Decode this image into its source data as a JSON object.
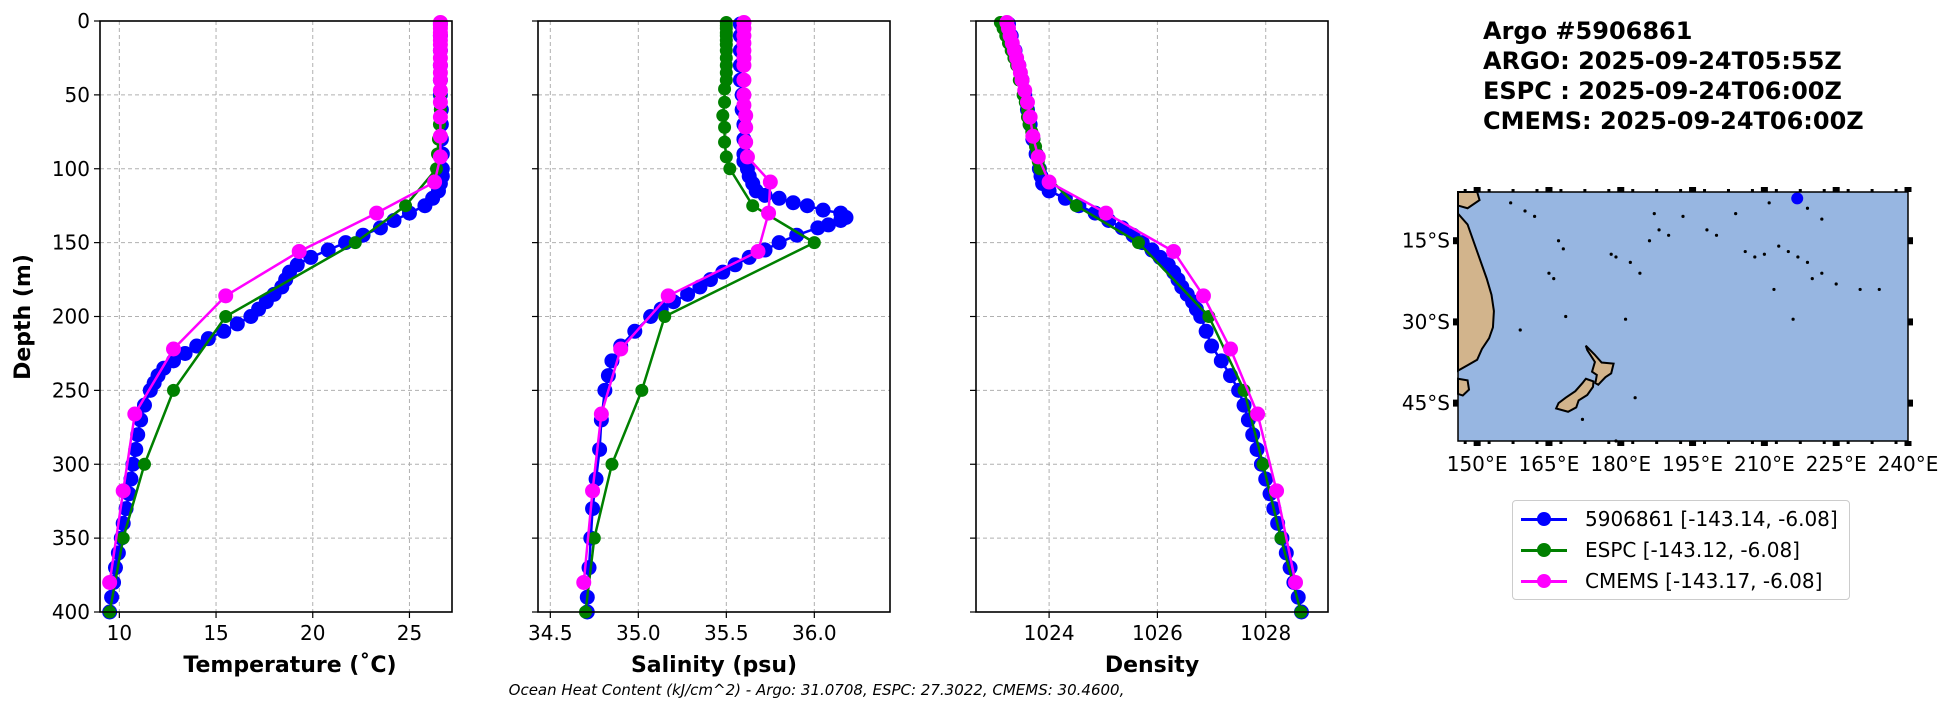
{
  "info": {
    "lines": [
      "Argo #5906861",
      "ARGO: 2025-09-24T05:55Z",
      "ESPC : 2025-09-24T06:00Z",
      "CMEMS: 2025-09-24T06:00Z"
    ]
  },
  "footnote": "Ocean Heat Content (kJ/cm^2) - Argo: 31.0708,  ESPC: 27.3022,  CMEMS: 30.4600,",
  "colors": {
    "argo": "#0000ff",
    "espc": "#008000",
    "cmems": "#ff00ff",
    "ocean": "#97b6e1",
    "land": "#d2b48c"
  },
  "legend": [
    {
      "label": "5906861 [-143.14, -6.08]",
      "series": "argo"
    },
    {
      "label": "ESPC [-143.12, -6.08]",
      "series": "espc"
    },
    {
      "label": "CMEMS [-143.17, -6.08]",
      "series": "cmems"
    }
  ],
  "chart_data": [
    {
      "type": "line",
      "title": "",
      "xlabel": "Temperature (˚C)",
      "ylabel": "Depth (m)",
      "xlim": [
        9.0,
        27.2
      ],
      "ylim": [
        400,
        0
      ],
      "xticks": [
        10,
        15,
        20,
        25
      ],
      "yticks": [
        0,
        50,
        100,
        150,
        200,
        250,
        300,
        350,
        400
      ],
      "grid": true,
      "series": [
        {
          "name": "5906861",
          "key": "argo",
          "depth": [
            2,
            10,
            20,
            30,
            40,
            50,
            60,
            70,
            80,
            90,
            100,
            105,
            110,
            115,
            120,
            125,
            130,
            135,
            140,
            145,
            150,
            155,
            160,
            165,
            170,
            175,
            180,
            185,
            190,
            195,
            200,
            205,
            210,
            215,
            220,
            225,
            230,
            235,
            240,
            245,
            250,
            260,
            270,
            280,
            290,
            300,
            310,
            320,
            330,
            340,
            350,
            360,
            370,
            380,
            390,
            400
          ],
          "values": [
            26.6,
            26.6,
            26.6,
            26.6,
            26.6,
            26.6,
            26.65,
            26.65,
            26.65,
            26.7,
            26.7,
            26.7,
            26.6,
            26.5,
            26.2,
            25.8,
            25.0,
            24.2,
            23.5,
            22.6,
            21.7,
            20.8,
            19.9,
            19.2,
            18.8,
            18.6,
            18.4,
            18.0,
            17.6,
            17.2,
            16.8,
            16.1,
            15.4,
            14.6,
            14.0,
            13.4,
            12.8,
            12.3,
            12.0,
            11.8,
            11.6,
            11.3,
            11.1,
            10.95,
            10.85,
            10.7,
            10.6,
            10.5,
            10.35,
            10.2,
            10.1,
            9.95,
            9.8,
            9.7,
            9.6,
            9.5
          ]
        },
        {
          "name": "ESPC",
          "key": "espc",
          "depth": [
            1,
            3,
            5,
            8,
            10,
            13,
            16,
            20,
            25,
            30,
            35,
            40,
            50,
            60,
            70,
            80,
            90,
            100,
            125,
            150,
            200,
            250,
            300,
            350,
            400
          ],
          "values": [
            26.6,
            26.6,
            26.6,
            26.6,
            26.6,
            26.6,
            26.6,
            26.6,
            26.6,
            26.6,
            26.6,
            26.6,
            26.6,
            26.6,
            26.55,
            26.5,
            26.45,
            26.4,
            24.8,
            22.2,
            15.5,
            12.8,
            11.3,
            10.2,
            9.5
          ]
        },
        {
          "name": "CMEMS",
          "key": "cmems",
          "depth": [
            1,
            3,
            5,
            8,
            10,
            13,
            16,
            20,
            25,
            30,
            35,
            40,
            47,
            55,
            65,
            78,
            92,
            109,
            130,
            156,
            186,
            222,
            266,
            318,
            380
          ],
          "values": [
            26.6,
            26.6,
            26.6,
            26.6,
            26.6,
            26.6,
            26.6,
            26.6,
            26.6,
            26.6,
            26.6,
            26.6,
            26.6,
            26.6,
            26.6,
            26.6,
            26.6,
            26.3,
            23.3,
            19.3,
            15.5,
            12.8,
            10.8,
            10.2,
            9.5
          ]
        }
      ]
    },
    {
      "type": "line",
      "title": "",
      "xlabel": "Salinity (psu)",
      "ylabel": "",
      "xlim": [
        34.43,
        36.43
      ],
      "ylim": [
        400,
        0
      ],
      "xticks": [
        34.5,
        35.0,
        35.5,
        36.0
      ],
      "xticklabels": [
        "34.5",
        "35.0",
        "35.5",
        "36.0"
      ],
      "grid": true,
      "series": [
        {
          "name": "5906861",
          "key": "argo",
          "depth": [
            2,
            10,
            20,
            30,
            40,
            50,
            60,
            70,
            80,
            90,
            95,
            100,
            105,
            110,
            115,
            118,
            120,
            123,
            125,
            128,
            130,
            133,
            135,
            138,
            140,
            145,
            150,
            155,
            160,
            165,
            170,
            175,
            180,
            185,
            190,
            195,
            200,
            210,
            220,
            230,
            240,
            250,
            270,
            290,
            310,
            330,
            350,
            370,
            390,
            400
          ],
          "values": [
            35.58,
            35.58,
            35.58,
            35.58,
            35.58,
            35.59,
            35.59,
            35.6,
            35.6,
            35.6,
            35.6,
            35.62,
            35.63,
            35.65,
            35.67,
            35.72,
            35.8,
            35.88,
            35.96,
            36.05,
            36.15,
            36.18,
            36.15,
            36.08,
            36.02,
            35.9,
            35.8,
            35.72,
            35.63,
            35.55,
            35.48,
            35.41,
            35.35,
            35.28,
            35.2,
            35.13,
            35.07,
            34.98,
            34.9,
            34.85,
            34.83,
            34.81,
            34.79,
            34.78,
            34.76,
            34.74,
            34.73,
            34.72,
            34.71,
            34.71
          ]
        },
        {
          "name": "ESPC",
          "key": "espc",
          "depth": [
            1,
            3,
            5,
            8,
            10,
            13,
            16,
            20,
            25,
            30,
            35,
            40,
            46,
            55,
            64,
            72,
            82,
            92,
            100,
            125,
            150,
            200,
            250,
            300,
            350,
            400
          ],
          "values": [
            35.5,
            35.5,
            35.5,
            35.5,
            35.5,
            35.5,
            35.5,
            35.5,
            35.5,
            35.5,
            35.5,
            35.5,
            35.49,
            35.49,
            35.48,
            35.49,
            35.49,
            35.5,
            35.52,
            35.65,
            36.0,
            35.15,
            35.02,
            34.85,
            34.75,
            34.7
          ]
        },
        {
          "name": "CMEMS",
          "key": "cmems",
          "depth": [
            1,
            5,
            10,
            15,
            20,
            25,
            30,
            40,
            50,
            57,
            64,
            72,
            82,
            92,
            109,
            130,
            156,
            186,
            222,
            266,
            318,
            380
          ],
          "values": [
            35.6,
            35.6,
            35.6,
            35.6,
            35.6,
            35.6,
            35.6,
            35.6,
            35.6,
            35.6,
            35.61,
            35.61,
            35.61,
            35.62,
            35.75,
            35.74,
            35.68,
            35.17,
            34.9,
            34.79,
            34.74,
            34.69
          ]
        }
      ]
    },
    {
      "type": "line",
      "title": "",
      "xlabel": "Density",
      "ylabel": "",
      "xlim": [
        1022.65,
        1029.15
      ],
      "ylim": [
        400,
        0
      ],
      "xticks": [
        1024,
        1026,
        1028
      ],
      "grid": true,
      "series": [
        {
          "name": "5906861",
          "key": "argo",
          "depth": [
            2,
            10,
            20,
            30,
            40,
            50,
            60,
            70,
            80,
            90,
            100,
            105,
            110,
            115,
            120,
            125,
            130,
            135,
            140,
            145,
            150,
            155,
            160,
            165,
            170,
            175,
            180,
            185,
            190,
            195,
            200,
            210,
            220,
            230,
            240,
            250,
            260,
            270,
            280,
            290,
            300,
            310,
            320,
            330,
            340,
            350,
            360,
            370,
            380,
            390,
            400
          ],
          "values": [
            1023.25,
            1023.3,
            1023.37,
            1023.44,
            1023.5,
            1023.55,
            1023.6,
            1023.65,
            1023.7,
            1023.76,
            1023.82,
            1023.85,
            1023.88,
            1024.0,
            1024.3,
            1024.55,
            1024.85,
            1025.1,
            1025.35,
            1025.55,
            1025.72,
            1025.9,
            1026.05,
            1026.2,
            1026.3,
            1026.38,
            1026.45,
            1026.55,
            1026.65,
            1026.72,
            1026.8,
            1026.9,
            1027.0,
            1027.18,
            1027.35,
            1027.5,
            1027.6,
            1027.68,
            1027.76,
            1027.84,
            1027.92,
            1028.0,
            1028.08,
            1028.15,
            1028.22,
            1028.3,
            1028.38,
            1028.45,
            1028.52,
            1028.6,
            1028.66
          ]
        },
        {
          "name": "ESPC",
          "key": "espc",
          "depth": [
            1,
            5,
            10,
            15,
            20,
            25,
            30,
            40,
            50,
            55,
            60,
            65,
            70,
            75,
            80,
            85,
            90,
            95,
            100,
            125,
            150,
            200,
            250,
            300,
            350,
            400
          ],
          "values": [
            1023.1,
            1023.15,
            1023.2,
            1023.25,
            1023.3,
            1023.35,
            1023.4,
            1023.45,
            1023.52,
            1023.56,
            1023.6,
            1023.6,
            1023.63,
            1023.68,
            1023.72,
            1023.75,
            1023.78,
            1023.8,
            1023.83,
            1024.5,
            1025.65,
            1026.95,
            1027.6,
            1027.95,
            1028.28,
            1028.65
          ]
        },
        {
          "name": "CMEMS",
          "key": "cmems",
          "depth": [
            1,
            5,
            10,
            15,
            20,
            25,
            30,
            35,
            40,
            47,
            55,
            65,
            78,
            92,
            109,
            130,
            156,
            186,
            222,
            266,
            318,
            380
          ],
          "values": [
            1023.22,
            1023.25,
            1023.28,
            1023.32,
            1023.36,
            1023.4,
            1023.44,
            1023.47,
            1023.5,
            1023.55,
            1023.6,
            1023.65,
            1023.7,
            1023.8,
            1024.0,
            1025.05,
            1026.3,
            1026.85,
            1027.35,
            1027.85,
            1028.2,
            1028.55
          ]
        }
      ]
    },
    {
      "type": "scatter",
      "title": "map",
      "xticklabels": [
        "150°E",
        "165°E",
        "180°E",
        "195°E",
        "210°E",
        "225°E",
        "240°E"
      ],
      "yticklabels": [
        "15°S",
        "30°S",
        "45°S"
      ],
      "xlim": [
        146,
        240
      ],
      "ylim": [
        -52,
        -6
      ],
      "points": [
        {
          "name": "Argo #5906861",
          "lon": 216.86,
          "lat": -6.08,
          "color": "#0000ff"
        }
      ]
    }
  ]
}
